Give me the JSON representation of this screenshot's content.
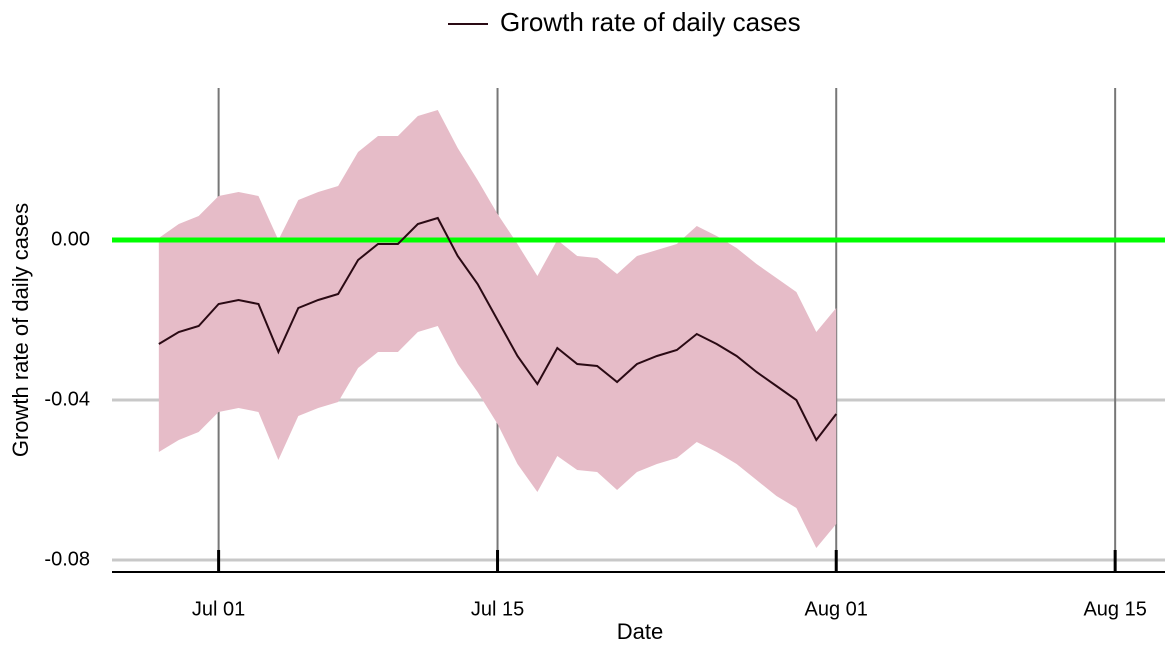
{
  "chart_data": {
    "type": "line",
    "x_label": "Date",
    "y_label": "Growth rate of daily cases",
    "x": [
      "Jun 28",
      "Jun 29",
      "Jun 30",
      "Jul 01",
      "Jul 02",
      "Jul 03",
      "Jul 04",
      "Jul 05",
      "Jul 06",
      "Jul 07",
      "Jul 08",
      "Jul 09",
      "Jul 10",
      "Jul 11",
      "Jul 12",
      "Jul 13",
      "Jul 14",
      "Jul 15",
      "Jul 16",
      "Jul 17",
      "Jul 18",
      "Jul 19",
      "Jul 20",
      "Jul 21",
      "Jul 22",
      "Jul 23",
      "Jul 24",
      "Jul 25",
      "Jul 26",
      "Jul 27",
      "Jul 28",
      "Jul 29",
      "Jul 30",
      "Jul 31",
      "Aug 01"
    ],
    "series": [
      {
        "name": "Growth rate of daily cases",
        "color": "#2a0a14",
        "values": [
          -0.026,
          -0.023,
          -0.0215,
          -0.016,
          -0.015,
          -0.016,
          -0.028,
          -0.017,
          -0.015,
          -0.0135,
          -0.005,
          -0.001,
          -0.001,
          0.004,
          0.0055,
          -0.004,
          -0.011,
          -0.02,
          -0.029,
          -0.036,
          -0.027,
          -0.031,
          -0.0315,
          -0.0355,
          -0.031,
          -0.029,
          -0.0275,
          -0.0235,
          -0.026,
          -0.029,
          -0.033,
          -0.0365,
          -0.04,
          -0.05,
          -0.0435
        ]
      }
    ],
    "band": {
      "color": "#e6bcc8",
      "upper": [
        0.0005,
        0.004,
        0.006,
        0.011,
        0.012,
        0.011,
        0.0,
        0.01,
        0.012,
        0.0135,
        0.022,
        0.026,
        0.026,
        0.031,
        0.0325,
        0.023,
        0.015,
        0.0065,
        -0.001,
        -0.009,
        0.0,
        -0.004,
        -0.0045,
        -0.0085,
        -0.004,
        -0.0025,
        -0.001,
        0.0035,
        0.001,
        -0.002,
        -0.006,
        -0.0095,
        -0.013,
        -0.023,
        -0.017
      ],
      "lower": [
        -0.053,
        -0.05,
        -0.048,
        -0.043,
        -0.042,
        -0.043,
        -0.055,
        -0.044,
        -0.042,
        -0.0405,
        -0.032,
        -0.028,
        -0.028,
        -0.023,
        -0.0215,
        -0.031,
        -0.038,
        -0.046,
        -0.056,
        -0.063,
        -0.054,
        -0.0575,
        -0.058,
        -0.0625,
        -0.058,
        -0.056,
        -0.0545,
        -0.0505,
        -0.053,
        -0.056,
        -0.06,
        -0.064,
        -0.067,
        -0.077,
        -0.071
      ]
    },
    "hline": {
      "value": 0,
      "color": "#00ff00"
    },
    "xlim": [
      "Jun 26",
      "Aug 17"
    ],
    "xticks": [
      "Jul 01",
      "Jul 15",
      "Aug 01",
      "Aug 15"
    ],
    "ylim": [
      -0.083,
      0.038
    ],
    "yticks": [
      {
        "value": 0,
        "label": "0.00"
      },
      {
        "value": -0.04,
        "label": "-0.04"
      },
      {
        "value": -0.08,
        "label": "-0.08"
      }
    ],
    "grid": true,
    "legend": "top"
  }
}
